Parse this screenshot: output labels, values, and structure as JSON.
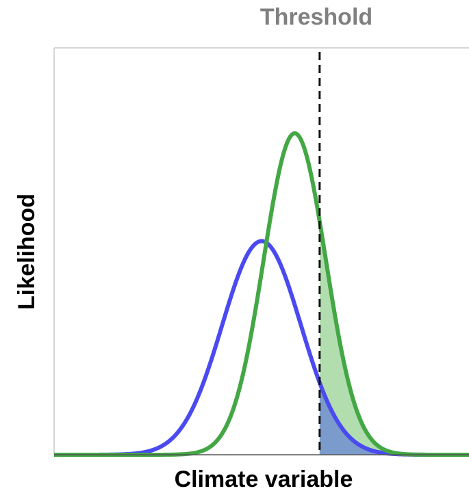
{
  "chart_data": {
    "type": "line",
    "annotation": "Threshold",
    "xlabel": "Climate variable",
    "ylabel": "Likelihood",
    "xlim": [
      0,
      1
    ],
    "ylim": [
      0,
      1
    ],
    "threshold_x": 0.64,
    "series": [
      {
        "mean": 0.5,
        "sd": 0.095,
        "peak": 0.525,
        "color": "#4a4af0",
        "fill": "#7a9bcc"
      },
      {
        "mean": 0.58,
        "sd": 0.075,
        "peak": 0.79,
        "color": "#43a745",
        "fill": "#b2deaf"
      }
    ],
    "grid": false,
    "axis_color": "#c8c8c8",
    "threshold_color": "#111111",
    "annotation_color": "#808080"
  }
}
